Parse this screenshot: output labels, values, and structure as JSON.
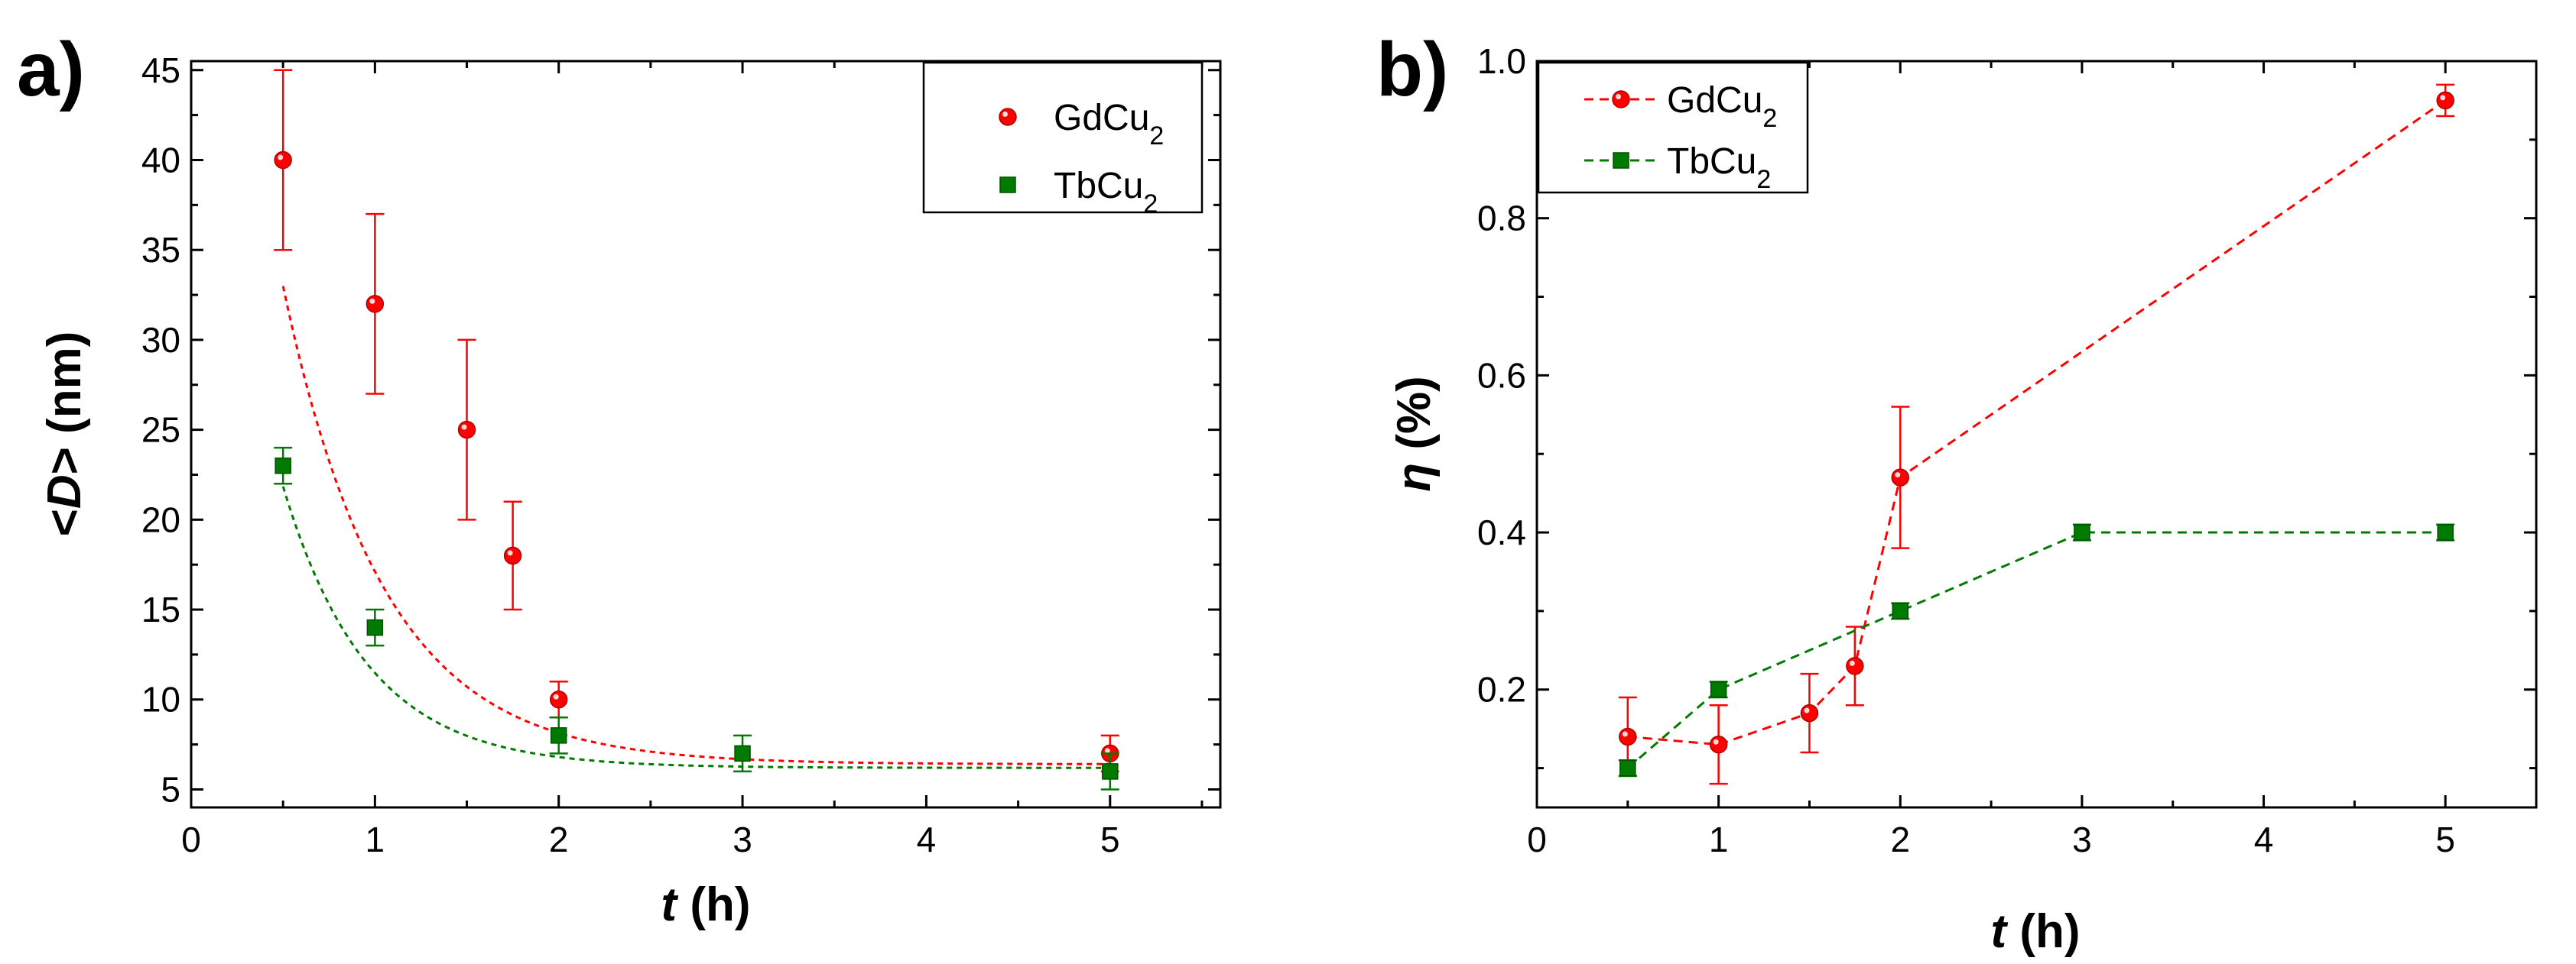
{
  "chart_data": [
    {
      "type": "scatter",
      "panel_label": "a)",
      "xlabel_var": "t",
      "xlabel_unit": " (h)",
      "ylabel_pre": "<",
      "ylabel_var": "D",
      "ylabel_post": "> (nm)",
      "xlim": [
        0,
        5.6
      ],
      "ylim": [
        4,
        45.5
      ],
      "xticks": [
        "0",
        "1",
        "2",
        "3",
        "4",
        "5"
      ],
      "yticks": [
        "5",
        "10",
        "15",
        "20",
        "25",
        "30",
        "35",
        "40",
        "45"
      ],
      "legend_position": "top-right",
      "series": [
        {
          "name_base": "GdCu",
          "name_sub": "2",
          "color": "#ff0000",
          "marker": "circle",
          "fit": "exponential decay",
          "fit_params": {
            "y0": 6.4,
            "A": 66,
            "tau": 0.55
          },
          "x": [
            0.5,
            1,
            1.5,
            1.75,
            2,
            5
          ],
          "y": [
            40,
            32,
            25,
            18,
            10,
            7
          ],
          "err": [
            5,
            5,
            5,
            3,
            1,
            1
          ]
        },
        {
          "name_base": "TbCu",
          "name_sub": "2",
          "color": "#007a00",
          "marker": "square",
          "fit": "exponential decay",
          "fit_params": {
            "y0": 6.2,
            "A": 46.4,
            "tau": 0.46
          },
          "x": [
            0.5,
            1,
            2,
            3,
            5
          ],
          "y": [
            23,
            14,
            8,
            7,
            6
          ],
          "err": [
            1,
            1,
            1,
            1,
            1
          ]
        }
      ]
    },
    {
      "type": "line",
      "panel_label": "b)",
      "xlabel_var": "t",
      "xlabel_unit": " (h)",
      "ylabel_var": "η",
      "ylabel_post": " (%)",
      "xlim": [
        0,
        5.5
      ],
      "ylim": [
        0.05,
        1.0
      ],
      "xticks": [
        "0",
        "1",
        "2",
        "3",
        "4",
        "5"
      ],
      "yticks": [
        "0.2",
        "0.4",
        "0.6",
        "0.8",
        "1.0"
      ],
      "legend_position": "top-left",
      "series": [
        {
          "name_base": "GdCu",
          "name_sub": "2",
          "color": "#ff0000",
          "marker": "circle",
          "x": [
            0.5,
            1,
            1.5,
            1.75,
            2,
            5
          ],
          "y": [
            0.14,
            0.13,
            0.17,
            0.23,
            0.47,
            0.95
          ],
          "err": [
            0.05,
            0.05,
            0.05,
            0.05,
            0.09,
            0.02
          ]
        },
        {
          "name_base": "TbCu",
          "name_sub": "2",
          "color": "#007a00",
          "marker": "square",
          "x": [
            0.5,
            1,
            2,
            3,
            5
          ],
          "y": [
            0.1,
            0.2,
            0.3,
            0.4,
            0.4
          ],
          "err": [
            0.01,
            0.01,
            0.01,
            0.01,
            0.01
          ]
        }
      ]
    }
  ]
}
